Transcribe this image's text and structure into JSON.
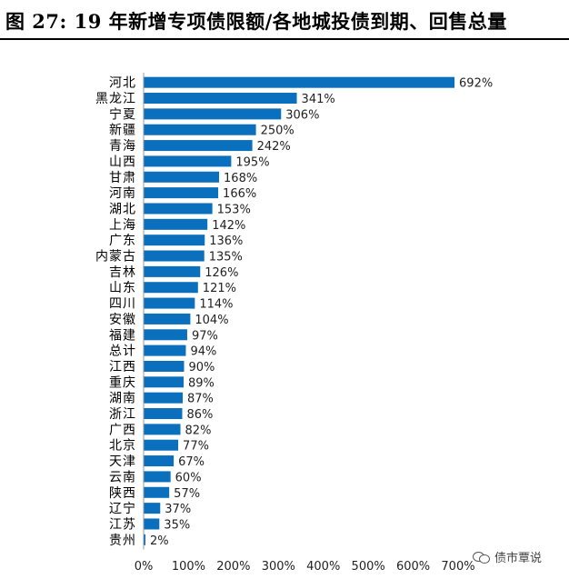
{
  "chart_data": {
    "type": "bar",
    "orientation": "horizontal",
    "title": "图 27: 19 年新增专项债限额/各地城投债到期、回售总量",
    "categories": [
      "河北",
      "黑龙江",
      "宁夏",
      "新疆",
      "青海",
      "山西",
      "甘肃",
      "河南",
      "湖北",
      "上海",
      "广东",
      "内蒙古",
      "吉林",
      "山东",
      "四川",
      "安徽",
      "福建",
      "总计",
      "江西",
      "重庆",
      "湖南",
      "浙江",
      "广西",
      "北京",
      "天津",
      "云南",
      "陕西",
      "辽宁",
      "江苏",
      "贵州"
    ],
    "values": [
      692,
      341,
      306,
      250,
      242,
      195,
      168,
      166,
      153,
      142,
      136,
      135,
      126,
      121,
      114,
      104,
      97,
      94,
      90,
      89,
      87,
      86,
      82,
      77,
      67,
      60,
      57,
      37,
      35,
      2
    ],
    "value_labels": [
      "692%",
      "341%",
      "306%",
      "250%",
      "242%",
      "195%",
      "168%",
      "166%",
      "153%",
      "142%",
      "136%",
      "135%",
      "126%",
      "121%",
      "114%",
      "104%",
      "97%",
      "94%",
      "90%",
      "89%",
      "87%",
      "86%",
      "82%",
      "77%",
      "67%",
      "60%",
      "57%",
      "37%",
      "35%",
      "2%"
    ],
    "xlim": [
      0,
      700
    ],
    "x_ticks": [
      0,
      100,
      200,
      300,
      400,
      500,
      600,
      700
    ],
    "x_tick_labels": [
      "0%",
      "100%",
      "200%",
      "300%",
      "400%",
      "500%",
      "600%",
      "700%"
    ],
    "bar_color": "#0a6fbd",
    "grid": false,
    "legend": "none"
  },
  "watermark": {
    "icon": "wechat-icon",
    "text": "债市覃说"
  }
}
